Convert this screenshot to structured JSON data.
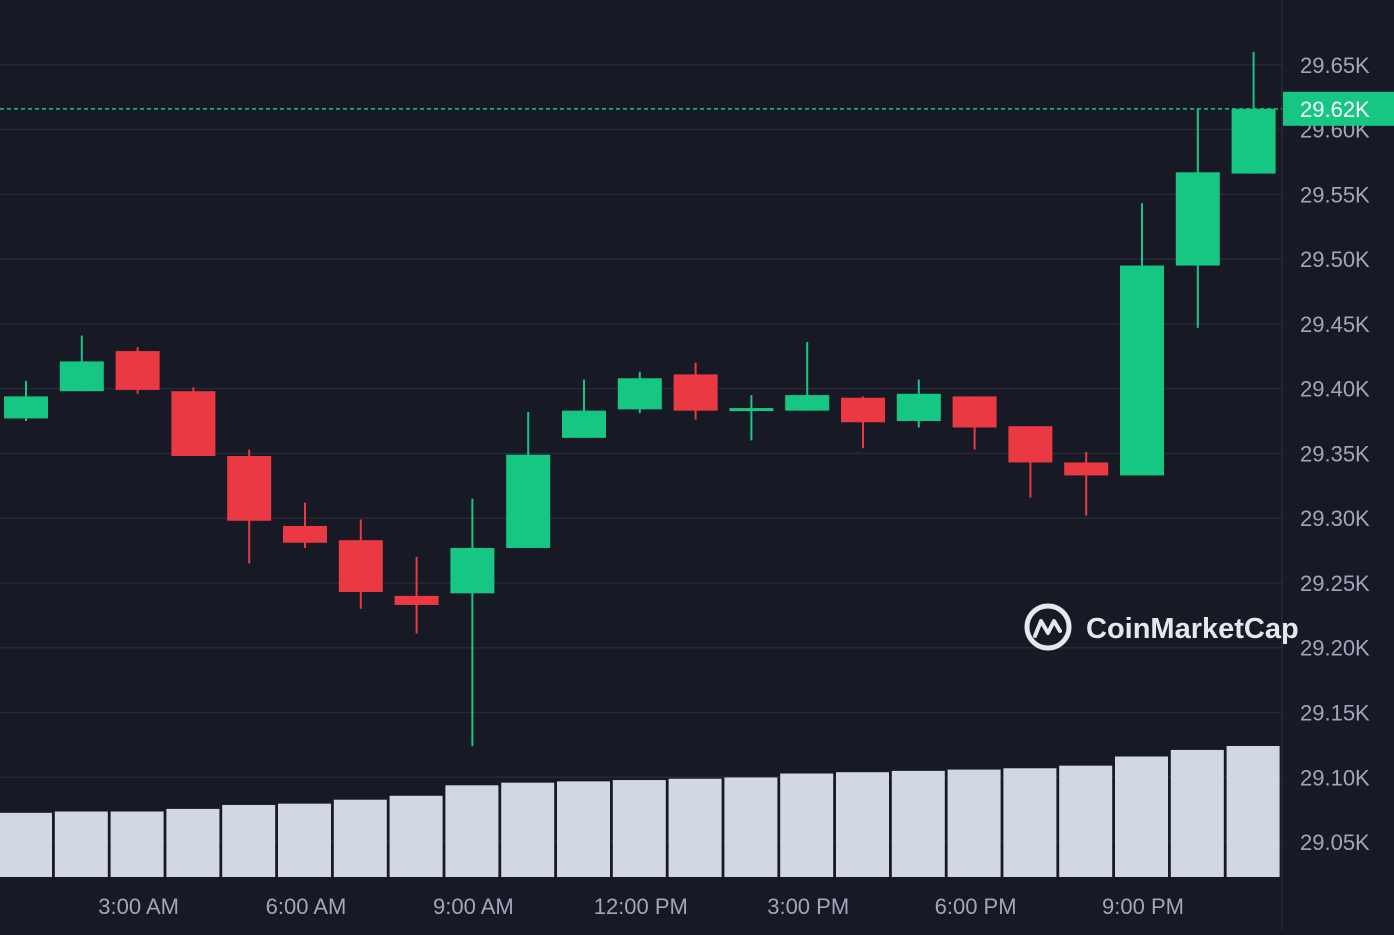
{
  "colors": {
    "background": "#171924",
    "grid": "#262a37",
    "up": "#16c784",
    "down": "#ea3943",
    "volume": "#d1d7e3",
    "axis_text": "#a1a7bb",
    "last_price_line": "#16c784",
    "watermark": "#e6e8ee"
  },
  "watermark": {
    "text": "CoinMarketCap",
    "icon": "coinmarketcap-logo-icon"
  },
  "chart_data": {
    "type": "candlestick",
    "y_axis": {
      "ticks": [
        "29.05K",
        "29.10K",
        "29.15K",
        "29.20K",
        "29.25K",
        "29.30K",
        "29.35K",
        "29.40K",
        "29.45K",
        "29.50K",
        "29.55K",
        "29.60K",
        "29.65K"
      ],
      "tick_values": [
        29050,
        29100,
        29150,
        29200,
        29250,
        29300,
        29350,
        29400,
        29450,
        29500,
        29550,
        29600,
        29650
      ],
      "range": [
        29023,
        29700
      ],
      "grid": true
    },
    "x_axis": {
      "labels": [
        "3:00 AM",
        "6:00 AM",
        "9:00 AM",
        "12:00 PM",
        "3:00 PM",
        "6:00 PM",
        "9:00 PM"
      ],
      "label_candle_index": [
        2,
        5,
        8,
        11,
        14,
        17,
        20
      ]
    },
    "last_price": {
      "label": "29.62K",
      "value": 29616
    },
    "candles": [
      {
        "o": 29377,
        "h": 29406,
        "l": 29375,
        "c": 29394
      },
      {
        "o": 29398,
        "h": 29441,
        "l": 29398,
        "c": 29421
      },
      {
        "o": 29429,
        "h": 29432,
        "l": 29396,
        "c": 29399
      },
      {
        "o": 29398,
        "h": 29401,
        "l": 29348,
        "c": 29348
      },
      {
        "o": 29348,
        "h": 29353,
        "l": 29265,
        "c": 29298
      },
      {
        "o": 29294,
        "h": 29312,
        "l": 29277,
        "c": 29281
      },
      {
        "o": 29283,
        "h": 29299,
        "l": 29230,
        "c": 29243
      },
      {
        "o": 29240,
        "h": 29270,
        "l": 29211,
        "c": 29233
      },
      {
        "o": 29242,
        "h": 29315,
        "l": 29124,
        "c": 29277
      },
      {
        "o": 29277,
        "h": 29382,
        "l": 29277,
        "c": 29349
      },
      {
        "o": 29362,
        "h": 29407,
        "l": 29362,
        "c": 29383
      },
      {
        "o": 29384,
        "h": 29413,
        "l": 29381,
        "c": 29408
      },
      {
        "o": 29411,
        "h": 29420,
        "l": 29376,
        "c": 29383
      },
      {
        "o": 29383,
        "h": 29395,
        "l": 29360,
        "c": 29385
      },
      {
        "o": 29383,
        "h": 29436,
        "l": 29383,
        "c": 29395
      },
      {
        "o": 29393,
        "h": 29394,
        "l": 29354,
        "c": 29374
      },
      {
        "o": 29375,
        "h": 29407,
        "l": 29370,
        "c": 29396
      },
      {
        "o": 29394,
        "h": 29394,
        "l": 29353,
        "c": 29370
      },
      {
        "o": 29371,
        "h": 29371,
        "l": 29316,
        "c": 29343
      },
      {
        "o": 29343,
        "h": 29351,
        "l": 29302,
        "c": 29333
      },
      {
        "o": 29333,
        "h": 29543,
        "l": 29333,
        "c": 29495
      },
      {
        "o": 29495,
        "h": 29616,
        "l": 29447,
        "c": 29567
      },
      {
        "o": 29566,
        "h": 29660,
        "l": 29566,
        "c": 29616
      }
    ],
    "volume_relative": [
      0.49,
      0.5,
      0.5,
      0.52,
      0.55,
      0.56,
      0.59,
      0.62,
      0.7,
      0.72,
      0.73,
      0.74,
      0.75,
      0.76,
      0.79,
      0.8,
      0.81,
      0.82,
      0.83,
      0.85,
      0.92,
      0.97,
      1.0
    ]
  }
}
